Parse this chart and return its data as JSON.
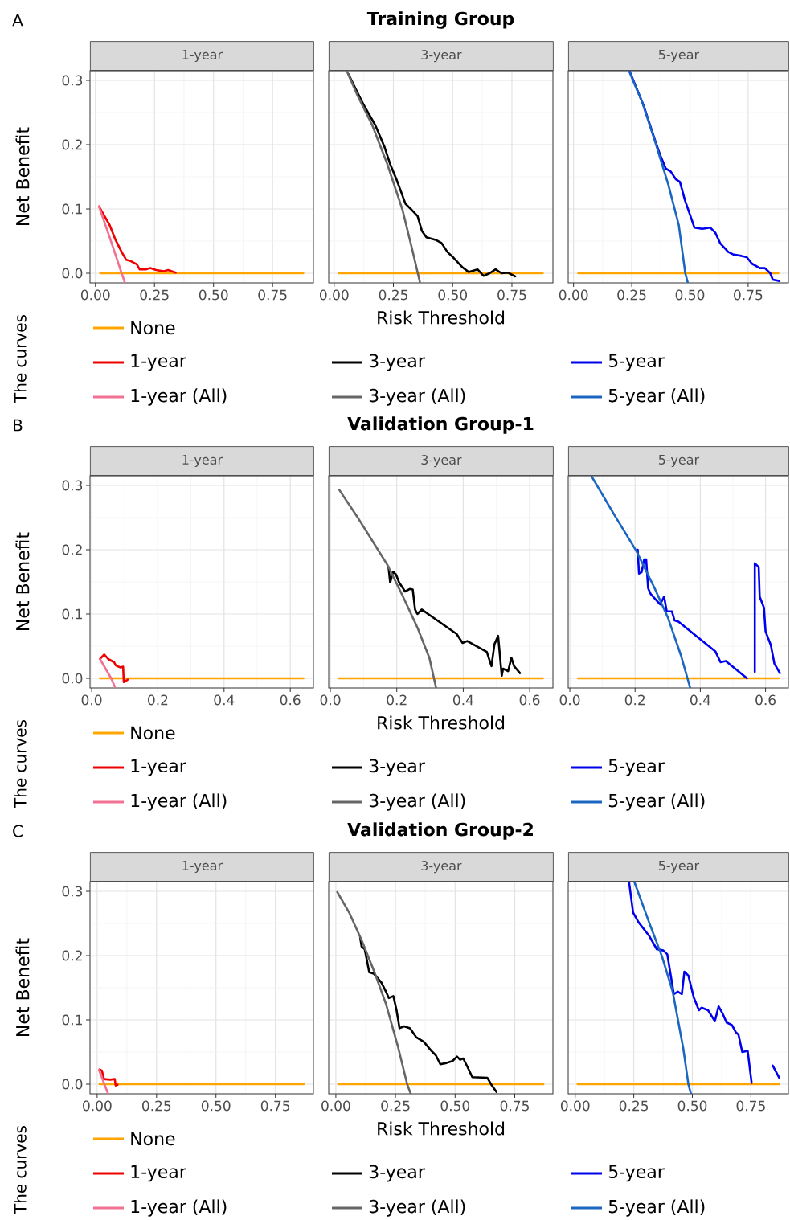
{
  "chart_data": [
    {
      "type": "line",
      "subtitle": "1-year",
      "ylabel": "Net Benefit",
      "legend_title": "The curves",
      "annotations": [
        "A"
      ],
      "xlim": [
        -0.023,
        0.923
      ],
      "ylim": [
        -0.015,
        0.315
      ],
      "xticks": [
        {
          "value": 0,
          "label": "0.00"
        },
        {
          "value": 0.25,
          "label": "0.25"
        },
        {
          "value": 0.5,
          "label": "0.50"
        },
        {
          "value": 0.75,
          "label": "0.75"
        }
      ],
      "yticks": [
        {
          "value": 0,
          "label": "0.0"
        },
        {
          "value": 0.1,
          "label": "0.1"
        },
        {
          "value": 0.2,
          "label": "0.2"
        },
        {
          "value": 0.3,
          "label": "0.3"
        }
      ],
      "grid": true,
      "legend": "bottom",
      "series": [
        {
          "name": "None",
          "color": "#FFA500",
          "x": [
            0.02,
            0.88
          ],
          "values": [
            0,
            0
          ]
        },
        {
          "name": "1-year",
          "color": "#EE0000",
          "x": [
            0.015,
            0.06,
            0.085,
            0.111,
            0.13,
            0.149,
            0.175,
            0.187,
            0.213,
            0.232,
            0.257,
            0.289,
            0.308,
            0.34
          ],
          "values": [
            0.104,
            0.075,
            0.052,
            0.033,
            0.021,
            0.019,
            0.014,
            0.006,
            0.006,
            0.008,
            0.005,
            0.003,
            0.005,
            0.001
          ]
        },
        {
          "name": "1-year (All)",
          "color": "#F27092",
          "x": [
            0.015,
            0.06,
            0.111,
            0.125
          ],
          "values": [
            0.104,
            0.056,
            0,
            -0.015
          ]
        }
      ]
    },
    {
      "type": "line",
      "title": "Training Group",
      "subtitle": "3-year",
      "xlabel": "Risk Threshold",
      "tick_labels": "x",
      "xlim": [
        -0.023,
        0.923
      ],
      "ylim": [
        -0.015,
        0.315
      ],
      "xticks": [
        {
          "value": 0,
          "label": "0.00"
        },
        {
          "value": 0.25,
          "label": "0.25"
        },
        {
          "value": 0.5,
          "label": "0.50"
        },
        {
          "value": 0.75,
          "label": "0.75"
        }
      ],
      "yticks": [
        {
          "value": 0,
          "label": null
        },
        {
          "value": 0.1,
          "label": null
        },
        {
          "value": 0.2,
          "label": null
        },
        {
          "value": 0.3,
          "label": null
        }
      ],
      "grid": true,
      "legend": "bottom",
      "series": [
        {
          "color": "#FFA500",
          "x": [
            0.02,
            0.88
          ],
          "values": [
            0,
            0
          ]
        },
        {
          "name": "3-year",
          "color": "#000000",
          "x": [
            0.06,
            0.1,
            0.123,
            0.174,
            0.212,
            0.237,
            0.263,
            0.282,
            0.301,
            0.326,
            0.352,
            0.37,
            0.389,
            0.428,
            0.453,
            0.478,
            0.504,
            0.542,
            0.567,
            0.605,
            0.63,
            0.656,
            0.681,
            0.706,
            0.732,
            0.764
          ],
          "values": [
            0.31,
            0.28,
            0.263,
            0.23,
            0.197,
            0.169,
            0.146,
            0.127,
            0.108,
            0.099,
            0.089,
            0.066,
            0.056,
            0.052,
            0.047,
            0.033,
            0.024,
            0.009,
            0.002,
            0.006,
            -0.004,
            0,
            0.006,
            0,
            0.001,
            -0.005
          ]
        },
        {
          "name": "3-year (All)",
          "color": "#666666",
          "x": [
            0.053,
            0.098,
            0.161,
            0.225,
            0.288,
            0.326,
            0.362
          ],
          "values": [
            0.315,
            0.277,
            0.23,
            0.169,
            0.099,
            0.042,
            -0.014
          ]
        }
      ]
    },
    {
      "type": "line",
      "subtitle": "5-year",
      "tick_labels": "x",
      "xlim": [
        -0.023,
        0.923
      ],
      "ylim": [
        -0.015,
        0.315
      ],
      "xticks": [
        {
          "value": 0,
          "label": "0.00"
        },
        {
          "value": 0.25,
          "label": "0.25"
        },
        {
          "value": 0.5,
          "label": "0.50"
        },
        {
          "value": 0.75,
          "label": "0.75"
        }
      ],
      "yticks": [
        {
          "value": 0,
          "label": null
        },
        {
          "value": 0.1,
          "label": null
        },
        {
          "value": 0.2,
          "label": null
        },
        {
          "value": 0.3,
          "label": null
        }
      ],
      "grid": true,
      "legend": "bottom",
      "series": [
        {
          "color": "#FFA500",
          "x": [
            0.02,
            0.88
          ],
          "values": [
            0,
            0
          ]
        },
        {
          "name": "5-year",
          "color": "#0000EE",
          "x": [
            0.24,
            0.3,
            0.35,
            0.373,
            0.396,
            0.418,
            0.44,
            0.457,
            0.479,
            0.508,
            0.519,
            0.553,
            0.587,
            0.609,
            0.631,
            0.665,
            0.688,
            0.721,
            0.744,
            0.766,
            0.8,
            0.822,
            0.845,
            0.856,
            0.884
          ],
          "values": [
            0.315,
            0.262,
            0.207,
            0.183,
            0.163,
            0.158,
            0.146,
            0.142,
            0.113,
            0.083,
            0.071,
            0.069,
            0.071,
            0.063,
            0.046,
            0.033,
            0.029,
            0.027,
            0.025,
            0.015,
            0.008,
            0.008,
            0,
            -0.01,
            -0.012
          ]
        },
        {
          "name": "5-year (All)",
          "color": "#1A66C0",
          "x": [
            0.238,
            0.294,
            0.351,
            0.407,
            0.452,
            0.48,
            0.491
          ],
          "values": [
            0.315,
            0.267,
            0.204,
            0.138,
            0.075,
            0,
            -0.015
          ]
        }
      ]
    },
    {
      "type": "line",
      "subtitle": "1-year",
      "ylabel": "Net Benefit",
      "legend_title": "The curves",
      "annotations": [
        "B"
      ],
      "xlim": [
        -0.005,
        0.67
      ],
      "ylim": [
        -0.015,
        0.315
      ],
      "xticks": [
        {
          "value": 0,
          "label": "0.0"
        },
        {
          "value": 0.2,
          "label": "0.2"
        },
        {
          "value": 0.4,
          "label": "0.4"
        },
        {
          "value": 0.6,
          "label": "0.6"
        }
      ],
      "yticks": [
        {
          "value": 0,
          "label": "0.0"
        },
        {
          "value": 0.1,
          "label": "0.1"
        },
        {
          "value": 0.2,
          "label": "0.2"
        },
        {
          "value": 0.3,
          "label": "0.3"
        }
      ],
      "grid": true,
      "legend": "bottom",
      "series": [
        {
          "name": "None",
          "color": "#FFA500",
          "x": [
            0.025,
            0.64
          ],
          "values": [
            0,
            0
          ]
        },
        {
          "name": "1-year",
          "color": "#EE0000",
          "x": [
            0.025,
            0.038,
            0.05,
            0.068,
            0.073,
            0.086,
            0.095,
            0.097,
            0.109
          ],
          "values": [
            0.03,
            0.037,
            0.03,
            0.025,
            0.02,
            0.017,
            0.018,
            -0.006,
            -0.002
          ]
        },
        {
          "name": "1-year (All)",
          "color": "#F27092",
          "x": [
            0.025,
            0.059,
            0.07
          ],
          "values": [
            0.03,
            0,
            -0.013
          ]
        }
      ]
    },
    {
      "type": "line",
      "title": "Validation Group-1",
      "subtitle": "3-year",
      "xlabel": "Risk Threshold",
      "tick_labels": "x",
      "xlim": [
        -0.005,
        0.67
      ],
      "ylim": [
        -0.015,
        0.315
      ],
      "xticks": [
        {
          "value": 0,
          "label": "0.0"
        },
        {
          "value": 0.2,
          "label": "0.2"
        },
        {
          "value": 0.4,
          "label": "0.4"
        },
        {
          "value": 0.6,
          "label": "0.6"
        }
      ],
      "yticks": [
        {
          "value": 0,
          "label": null
        },
        {
          "value": 0.1,
          "label": null
        },
        {
          "value": 0.2,
          "label": null
        },
        {
          "value": 0.3,
          "label": null
        }
      ],
      "grid": true,
      "legend": "bottom",
      "series": [
        {
          "color": "#FFA500",
          "x": [
            0.025,
            0.64
          ],
          "values": [
            0,
            0
          ]
        },
        {
          "name": "3-year",
          "color": "#000000",
          "x": [
            0.175,
            0.18,
            0.189,
            0.198,
            0.207,
            0.225,
            0.239,
            0.248,
            0.255,
            0.262,
            0.275,
            0.38,
            0.398,
            0.412,
            0.471,
            0.485,
            0.494,
            0.505,
            0.516,
            0.52,
            0.535,
            0.545,
            0.553,
            0.571
          ],
          "values": [
            0.173,
            0.149,
            0.166,
            0.161,
            0.149,
            0.135,
            0.139,
            0.138,
            0.107,
            0.1,
            0.107,
            0.069,
            0.055,
            0.058,
            0.041,
            0.019,
            0.053,
            0.066,
            0.004,
            0.015,
            0.011,
            0.032,
            0.019,
            0.008
          ]
        },
        {
          "name": "3-year (All)",
          "color": "#666666",
          "x": [
            0.027,
            0.08,
            0.125,
            0.171,
            0.216,
            0.262,
            0.298,
            0.318
          ],
          "values": [
            0.293,
            0.252,
            0.215,
            0.177,
            0.13,
            0.079,
            0.032,
            -0.014
          ]
        }
      ]
    },
    {
      "type": "line",
      "subtitle": "5-year",
      "tick_labels": "x",
      "xlim": [
        -0.005,
        0.67
      ],
      "ylim": [
        -0.015,
        0.315
      ],
      "xticks": [
        {
          "value": 0,
          "label": "0.0"
        },
        {
          "value": 0.2,
          "label": "0.2"
        },
        {
          "value": 0.4,
          "label": "0.4"
        },
        {
          "value": 0.6,
          "label": "0.6"
        }
      ],
      "yticks": [
        {
          "value": 0,
          "label": null
        },
        {
          "value": 0.1,
          "label": null
        },
        {
          "value": 0.2,
          "label": null
        },
        {
          "value": 0.3,
          "label": null
        }
      ],
      "grid": true,
      "legend": "bottom",
      "series": [
        {
          "color": "#FFA500",
          "x": [
            0.025,
            0.64
          ],
          "values": [
            0,
            0
          ]
        },
        {
          "name": "5-year",
          "color": "#0000EE",
          "x": [
            0.208,
            0.212,
            0.22,
            0.228,
            0.234,
            0.24,
            0.248,
            0.277,
            0.289,
            0.297,
            0.313,
            0.321,
            0.333,
            0.446,
            0.462,
            0.478,
            0.543,
            0.551,
            0.559,
            0.567,
            0.567,
            0.579,
            0.582,
            0.595,
            0.6,
            0.616,
            0.627,
            0.644
          ],
          "values": [
            0.2,
            0.163,
            0.165,
            0.185,
            0.185,
            0.14,
            0.131,
            0.115,
            0.127,
            0.104,
            0.104,
            0.09,
            0.088,
            0.042,
            0.025,
            0.027,
            0,
            null,
            null,
            0.01,
            0.179,
            0.173,
            0.127,
            0.11,
            0.073,
            0.052,
            0.023,
            0.008
          ]
        },
        {
          "name": "5-year (All)",
          "color": "#1A66C0",
          "x": [
            0.067,
            0.139,
            0.204,
            0.26,
            0.301,
            0.341,
            0.369
          ],
          "values": [
            0.314,
            0.252,
            0.198,
            0.14,
            0.094,
            0.035,
            -0.015
          ]
        }
      ]
    },
    {
      "type": "line",
      "subtitle": "1-year",
      "ylabel": "Net Benefit",
      "legend_title": "The curves",
      "annotations": [
        "C"
      ],
      "xlim": [
        -0.03,
        0.91
      ],
      "ylim": [
        -0.015,
        0.315
      ],
      "xticks": [
        {
          "value": 0,
          "label": "0.00"
        },
        {
          "value": 0.25,
          "label": "0.25"
        },
        {
          "value": 0.5,
          "label": "0.50"
        },
        {
          "value": 0.75,
          "label": "0.75"
        }
      ],
      "yticks": [
        {
          "value": 0,
          "label": "0.0"
        },
        {
          "value": 0.1,
          "label": "0.1"
        },
        {
          "value": 0.2,
          "label": "0.2"
        },
        {
          "value": 0.3,
          "label": "0.3"
        }
      ],
      "grid": true,
      "legend": "bottom",
      "series": [
        {
          "name": "None",
          "color": "#FFA500",
          "x": [
            0.01,
            0.87
          ],
          "values": [
            0,
            0
          ]
        },
        {
          "name": "1-year",
          "color": "#EE0000",
          "x": [
            0.01,
            0.02,
            0.029,
            0.055,
            0.074,
            0.078,
            0.086
          ],
          "values": [
            0.023,
            0.021,
            0.008,
            0.007,
            0.008,
            -0.002,
            -0.001
          ]
        },
        {
          "name": "1-year (All)",
          "color": "#F27092",
          "x": [
            0.008,
            0.046
          ],
          "values": [
            0.022,
            -0.015
          ]
        }
      ]
    },
    {
      "type": "line",
      "title": "Validation Group-2",
      "subtitle": "3-year",
      "xlabel": "Risk Threshold",
      "tick_labels": "x",
      "xlim": [
        -0.03,
        0.91
      ],
      "ylim": [
        -0.015,
        0.315
      ],
      "xticks": [
        {
          "value": 0,
          "label": "0.00"
        },
        {
          "value": 0.25,
          "label": "0.25"
        },
        {
          "value": 0.5,
          "label": "0.50"
        },
        {
          "value": 0.75,
          "label": "0.75"
        }
      ],
      "yticks": [
        {
          "value": 0,
          "label": null
        },
        {
          "value": 0.1,
          "label": null
        },
        {
          "value": 0.2,
          "label": null
        },
        {
          "value": 0.3,
          "label": null
        }
      ],
      "grid": true,
      "legend": "bottom",
      "series": [
        {
          "color": "#FFA500",
          "x": [
            0.01,
            0.87
          ],
          "values": [
            0,
            0
          ]
        },
        {
          "name": "3-year",
          "color": "#000000",
          "x": [
            0.102,
            0.108,
            0.121,
            0.14,
            0.159,
            0.191,
            0.21,
            0.222,
            0.241,
            0.254,
            0.267,
            0.286,
            0.311,
            0.337,
            0.368,
            0.4,
            0.419,
            0.438,
            0.464,
            0.489,
            0.508,
            0.521,
            0.534,
            0.553,
            0.572,
            0.635,
            0.654,
            0.673
          ],
          "values": [
            0.228,
            0.214,
            0.21,
            0.174,
            0.172,
            0.158,
            0.144,
            0.134,
            0.137,
            0.116,
            0.087,
            0.09,
            0.087,
            0.073,
            0.066,
            0.052,
            0.045,
            0.031,
            0.033,
            0.036,
            0.043,
            0.038,
            0.04,
            0.026,
            0.011,
            0.01,
            -0.002,
            -0.012
          ]
        },
        {
          "name": "3-year (All)",
          "color": "#666666",
          "x": [
            0.006,
            0.057,
            0.108,
            0.159,
            0.21,
            0.26,
            0.299,
            0.314
          ],
          "values": [
            0.299,
            0.266,
            0.224,
            0.177,
            0.125,
            0.059,
            0,
            -0.015
          ]
        }
      ]
    },
    {
      "type": "line",
      "subtitle": "5-year",
      "tick_labels": "x",
      "xlim": [
        -0.03,
        0.91
      ],
      "ylim": [
        -0.015,
        0.315
      ],
      "xticks": [
        {
          "value": 0,
          "label": "0.00"
        },
        {
          "value": 0.25,
          "label": "0.25"
        },
        {
          "value": 0.5,
          "label": "0.50"
        },
        {
          "value": 0.75,
          "label": "0.75"
        }
      ],
      "yticks": [
        {
          "value": 0,
          "label": null
        },
        {
          "value": 0.1,
          "label": null
        },
        {
          "value": 0.2,
          "label": null
        },
        {
          "value": 0.3,
          "label": null
        }
      ],
      "grid": true,
      "legend": "bottom",
      "series": [
        {
          "color": "#FFA500",
          "x": [
            0.01,
            0.87
          ],
          "values": [
            0,
            0
          ]
        },
        {
          "name": "5-year",
          "color": "#0000EE",
          "x": [
            0.23,
            0.247,
            0.27,
            0.315,
            0.348,
            0.376,
            0.393,
            0.421,
            0.438,
            0.455,
            0.466,
            0.483,
            0.506,
            0.528,
            0.539,
            0.567,
            0.596,
            0.612,
            0.629,
            0.646,
            0.669,
            0.685,
            0.697,
            0.713,
            0.736,
            0.753,
            0.77,
            0.82,
            0.843,
            0.871
          ],
          "values": [
            0.314,
            0.267,
            0.252,
            0.231,
            0.21,
            0.208,
            0.202,
            0.14,
            0.144,
            0.14,
            0.175,
            0.169,
            0.135,
            0.115,
            0.119,
            0.115,
            0.098,
            0.121,
            0.11,
            0.096,
            0.092,
            0.081,
            0.077,
            0.05,
            0.052,
            0.002,
            null,
            null,
            0.029,
            0.01
          ]
        },
        {
          "name": "5-year (All)",
          "color": "#1A66C0",
          "x": [
            0.253,
            0.315,
            0.371,
            0.416,
            0.461,
            0.483,
            0.494
          ],
          "values": [
            0.314,
            0.252,
            0.198,
            0.144,
            0.056,
            0,
            -0.015
          ]
        }
      ]
    }
  ]
}
